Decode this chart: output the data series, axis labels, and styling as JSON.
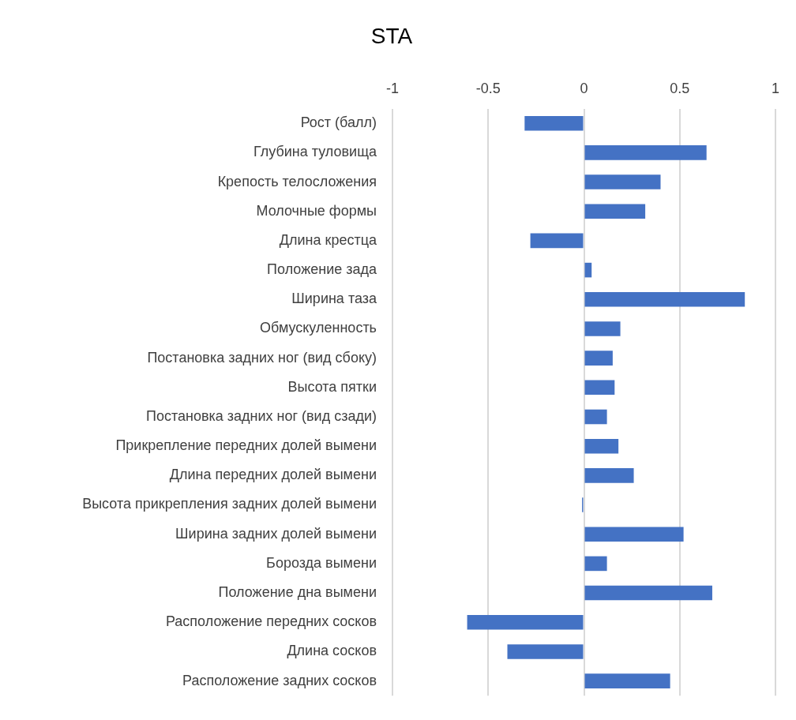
{
  "chart_data": {
    "type": "bar",
    "orientation": "horizontal",
    "title": "STA",
    "categories": [
      "Рост (балл)",
      "Глубина туловища",
      "Крепость телосложения",
      "Молочные формы",
      "Длина крестца",
      "Положение зада",
      "Ширина таза",
      "Обмускуленность",
      "Постановка задних ног (вид сбоку)",
      "Высота пятки",
      "Постановка задних ног (вид сзади)",
      "Прикрепление передних долей вымени",
      "Длина передних долей вымени",
      "Высота прикрепления задних долей вымени",
      "Ширина задних долей вымени",
      "Борозда вымени",
      "Положение дна вымени",
      "Расположение передних сосков",
      "Длина сосков",
      "Расположение задних сосков"
    ],
    "values": [
      -0.31,
      0.64,
      0.4,
      0.32,
      -0.28,
      0.04,
      0.84,
      0.19,
      0.15,
      0.16,
      0.12,
      0.18,
      0.26,
      -0.01,
      0.52,
      0.12,
      0.67,
      -0.61,
      -0.4,
      0.45
    ],
    "color": "#4472c4",
    "xlim": [
      -1,
      1
    ],
    "xticks": [
      -1,
      -0.5,
      0,
      0.5,
      1
    ],
    "grid": "x",
    "legend": false
  }
}
